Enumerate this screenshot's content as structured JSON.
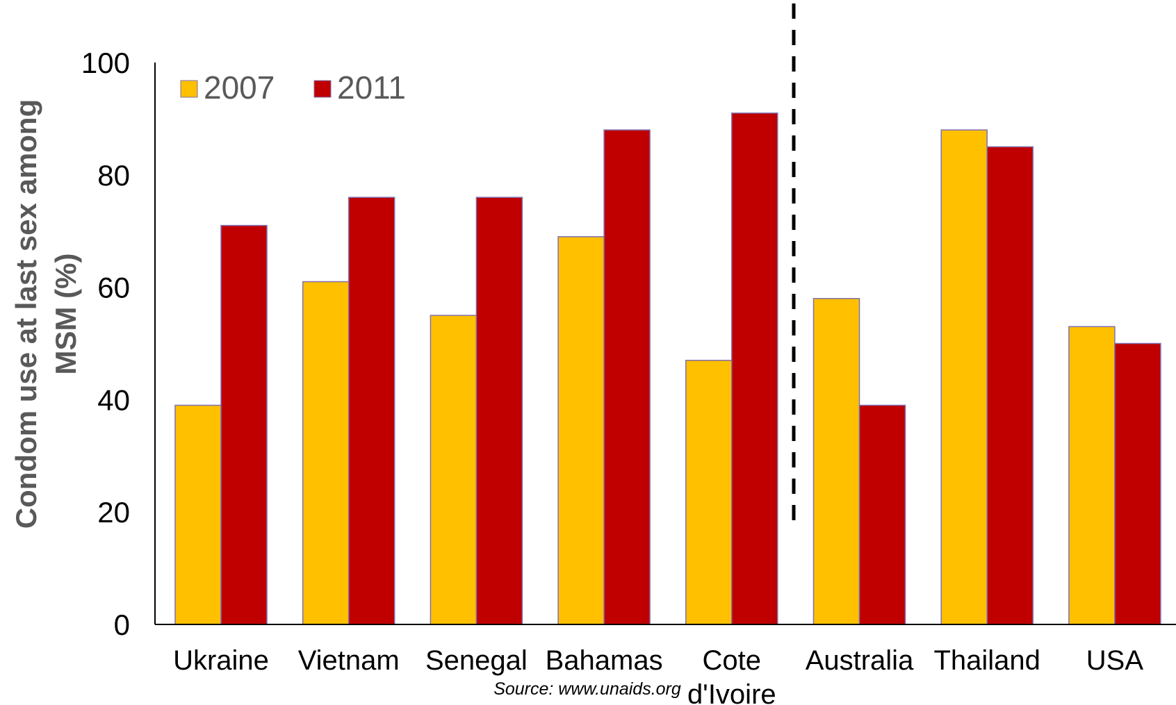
{
  "chart_data": {
    "type": "bar",
    "title": "",
    "xlabel": "",
    "ylabel": "Condom use at last sex among MSM (%)",
    "ylim": [
      0,
      100
    ],
    "yticks": [
      0,
      20,
      40,
      60,
      80,
      100
    ],
    "grid": false,
    "legend_position": "top-left",
    "categories": [
      [
        "Ukraine"
      ],
      [
        "Vietnam"
      ],
      [
        "Senegal"
      ],
      [
        "Bahamas"
      ],
      [
        "Cote",
        "d'Ivoire"
      ],
      [
        "Australia"
      ],
      [
        "Thailand"
      ],
      [
        "USA"
      ]
    ],
    "series": [
      {
        "name": "2007",
        "color": "#FFC000",
        "values": [
          39,
          61,
          55,
          69,
          47,
          58,
          88,
          53
        ]
      },
      {
        "name": "2011",
        "color": "#C00000",
        "values": [
          71,
          76,
          76,
          88,
          91,
          39,
          85,
          50
        ]
      }
    ],
    "divider_after_category": "Cote d'Ivoire",
    "annotation": "Source: www.unaids.org"
  }
}
